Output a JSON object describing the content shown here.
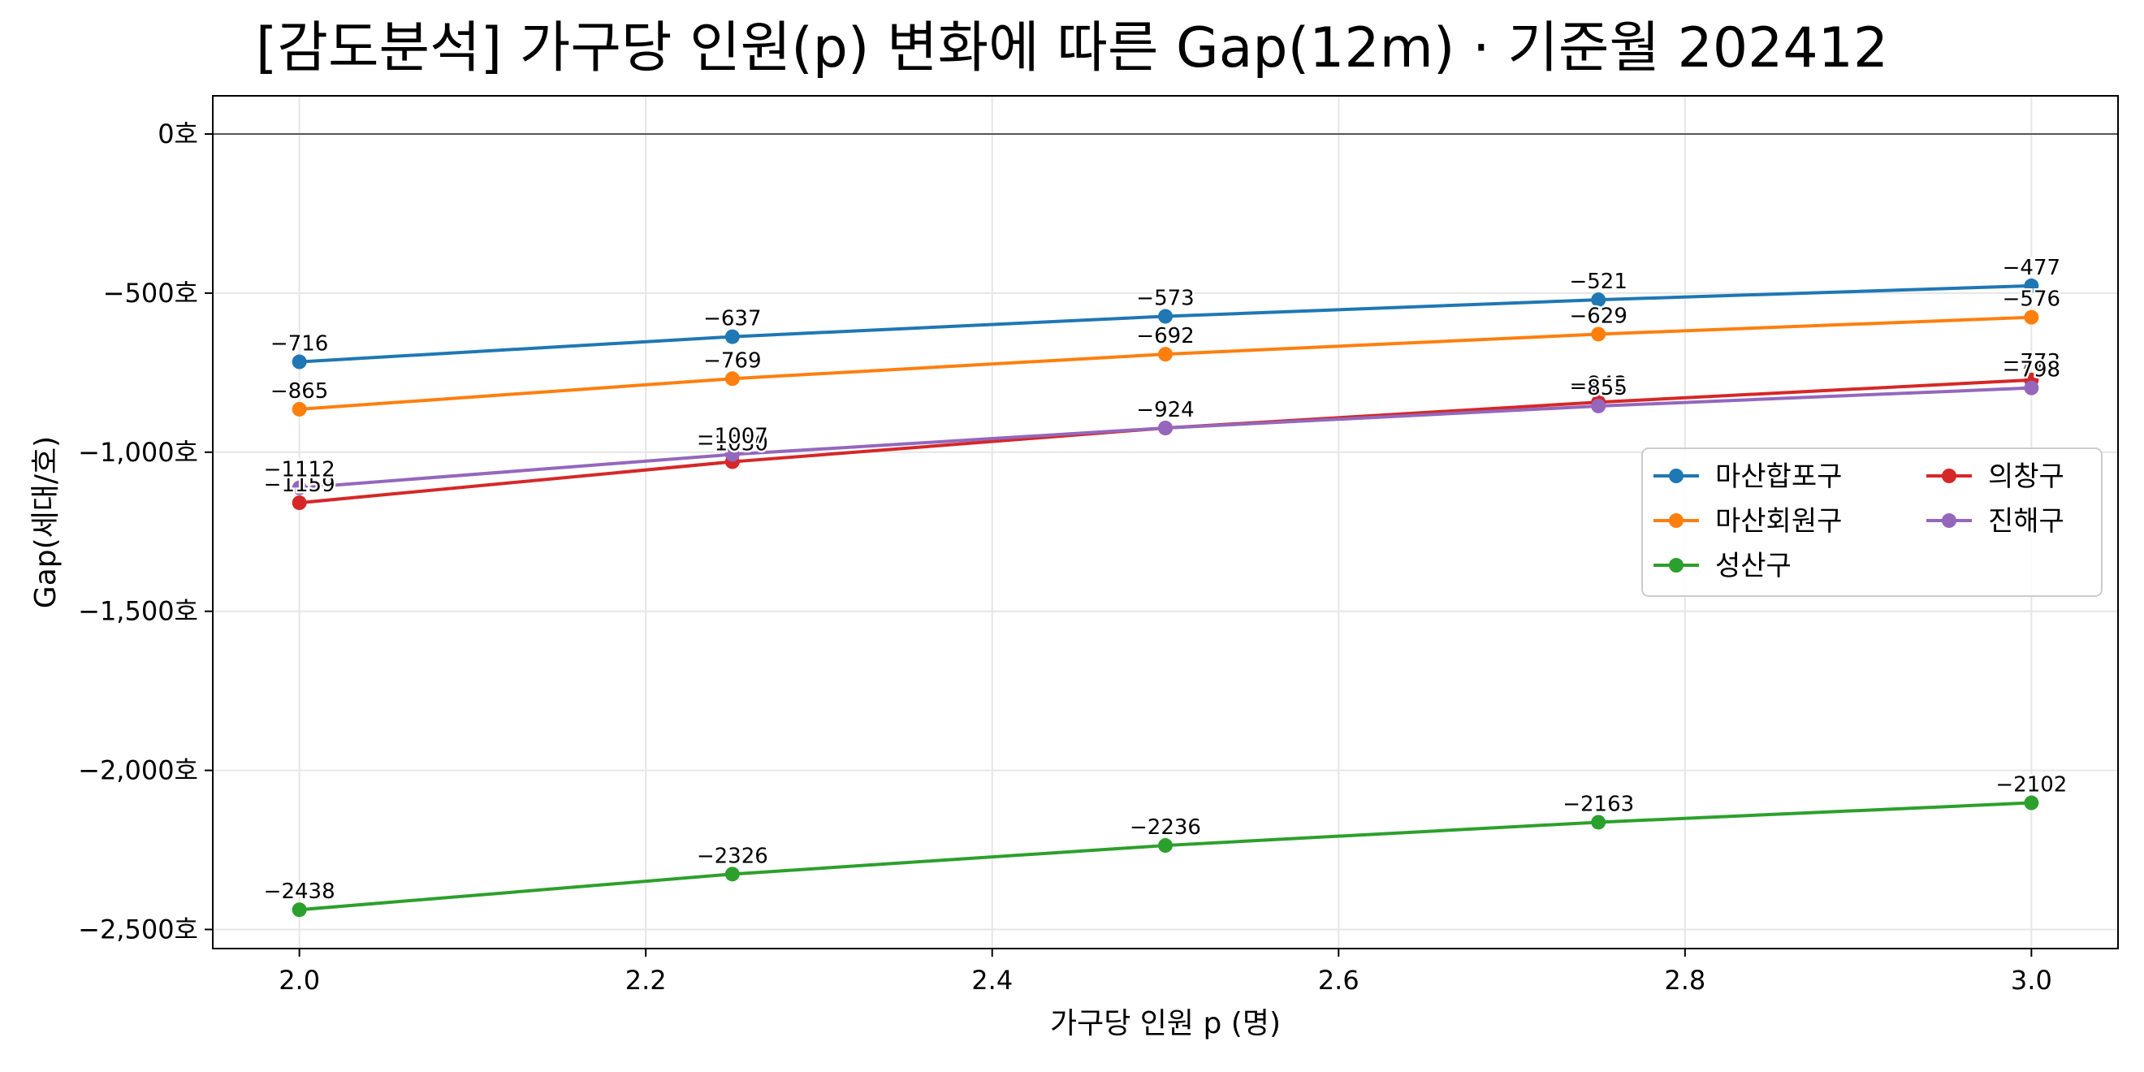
{
  "chart_data": {
    "type": "line",
    "title": "[감도분석] 가구당 인원(p) 변화에 따른 Gap(12m) · 기준월 202412",
    "xlabel": "가구당 인원 p (명)",
    "ylabel": "Gap(세대/호)",
    "x": [
      2.0,
      2.25,
      2.5,
      2.75,
      3.0
    ],
    "xlim": [
      1.95,
      3.05
    ],
    "ylim": [
      -2560,
      120
    ],
    "x_ticks": [
      2.0,
      2.2,
      2.4,
      2.6,
      2.8,
      3.0
    ],
    "x_tick_labels": [
      "2.0",
      "2.2",
      "2.4",
      "2.6",
      "2.8",
      "3.0"
    ],
    "y_ticks": [
      0,
      -500,
      -1000,
      -1500,
      -2000,
      -2500
    ],
    "y_tick_labels": [
      "0호",
      "−500호",
      "−1,000호",
      "−1,500호",
      "−2,000호",
      "−2,500호"
    ],
    "reference_line": 0,
    "grid": true,
    "legend_position": "center-right",
    "legend_columns": 2,
    "series": [
      {
        "name": "마산합포구",
        "color": "#1f77b4",
        "values": [
          -716,
          -637,
          -573,
          -521,
          -477
        ],
        "labels": [
          "−716",
          "−637",
          "−573",
          "−521",
          "−477"
        ]
      },
      {
        "name": "마산회원구",
        "color": "#ff7f0e",
        "values": [
          -865,
          -769,
          -692,
          -629,
          -576
        ],
        "labels": [
          "−865",
          "−769",
          "−692",
          "−629",
          "−576"
        ]
      },
      {
        "name": "성산구",
        "color": "#2ca02c",
        "values": [
          -2438,
          -2326,
          -2236,
          -2163,
          -2102
        ],
        "labels": [
          "−2438",
          "−2326",
          "−2236",
          "−2163",
          "−2102"
        ]
      },
      {
        "name": "의창구",
        "color": "#d62728",
        "values": [
          -1159,
          -1030,
          -924,
          -843,
          -773
        ],
        "labels": [
          "−1159",
          "−1030",
          "−924",
          "−843",
          "−773"
        ]
      },
      {
        "name": "진해구",
        "color": "#9467bd",
        "values": [
          -1112,
          -1007,
          -924,
          -855,
          -798
        ],
        "labels": [
          "−1112",
          "−1007",
          "−924",
          "−855",
          "−798"
        ]
      }
    ]
  }
}
